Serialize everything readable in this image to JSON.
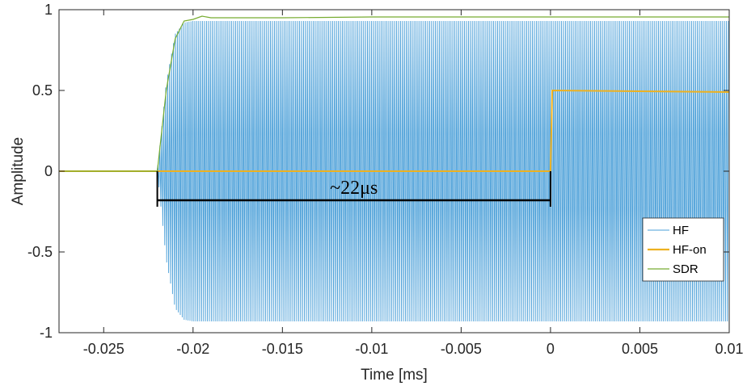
{
  "chart_data": {
    "type": "line",
    "title": "",
    "xlabel": "Time [ms]",
    "ylabel": "Amplitude",
    "xlim": [
      -0.0275,
      0.01
    ],
    "ylim": [
      -1,
      1
    ],
    "xticks": [
      -0.025,
      -0.02,
      -0.015,
      -0.01,
      -0.005,
      0,
      0.005,
      0.01
    ],
    "xtick_labels": [
      "-0.025",
      "-0.02",
      "-0.015",
      "-0.01",
      "-0.005",
      "0",
      "0.005",
      "0.01"
    ],
    "yticks": [
      -1,
      -0.5,
      0,
      0.5,
      1
    ],
    "ytick_labels": [
      "-1",
      "-0.5",
      "0",
      "0.5",
      "1"
    ],
    "grid": false,
    "legend_position": "bottom-right",
    "series": [
      {
        "name": "HF",
        "color": "#0072BD",
        "style": "dense oscillation",
        "envelope": {
          "x": [
            -0.0275,
            -0.022,
            -0.0215,
            -0.021,
            -0.0205,
            -0.02,
            -0.0195,
            -0.01,
            0.01
          ],
          "y": [
            0,
            0,
            0.55,
            0.85,
            0.92,
            0.93,
            0.93,
            0.93,
            0.93
          ]
        }
      },
      {
        "name": "HF-on",
        "color": "#EDB120",
        "x": [
          -0.0275,
          0,
          0.0001,
          0.01
        ],
        "y": [
          0,
          0,
          0.5,
          0.49
        ]
      },
      {
        "name": "SDR",
        "color": "#77AC30",
        "x": [
          -0.0275,
          -0.022,
          -0.0215,
          -0.021,
          -0.0205,
          -0.02,
          -0.0195,
          -0.019,
          -0.015,
          -0.01,
          0.01
        ],
        "y": [
          0,
          0,
          0.5,
          0.82,
          0.93,
          0.94,
          0.96,
          0.95,
          0.95,
          0.955,
          0.955
        ]
      }
    ],
    "annotations": [
      {
        "text": "~22μs",
        "x_start": -0.022,
        "x_end": 0,
        "y": -0.18
      }
    ]
  }
}
